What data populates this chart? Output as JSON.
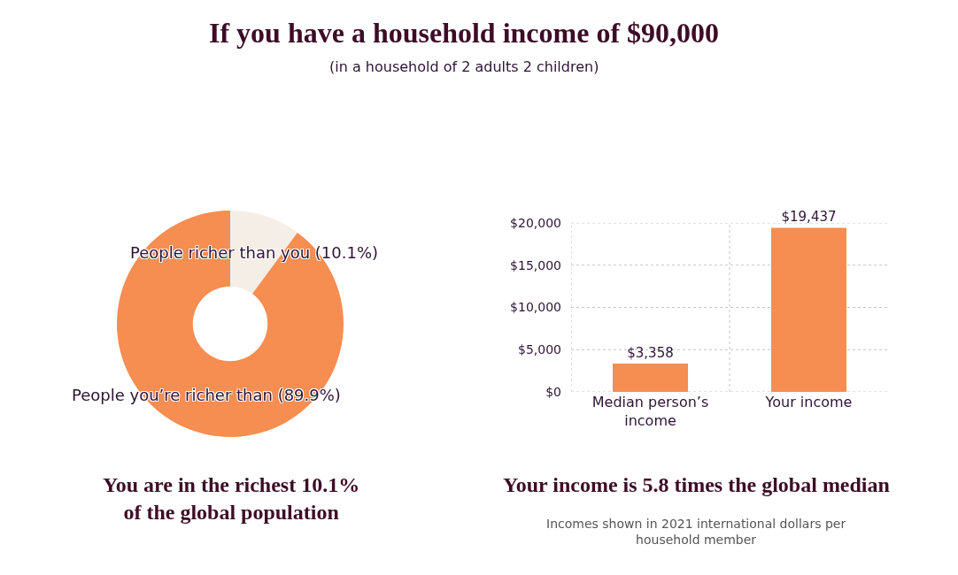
{
  "chart_data": [
    {
      "type": "other",
      "title": "If you have a household income of $90,000",
      "subtitle": "(in a household of 2 adults 2 children)"
    },
    {
      "type": "donut",
      "categories": [
        "People richer than you (10.1%)",
        "People you’re richer than (89.9%)"
      ],
      "values": [
        10.1,
        89.9
      ],
      "colors": [
        "#f4eee6",
        "#f68d51"
      ],
      "annotations": [
        "You are in the richest 10.1% of the global population"
      ]
    },
    {
      "type": "bar",
      "categories": [
        "Median person’s income",
        "Your income"
      ],
      "values": [
        3358,
        19437
      ],
      "color": "#f68d51",
      "value_labels": [
        "$3,358",
        "$19,437"
      ],
      "ylim": [
        0,
        20000
      ],
      "yticks": [
        {
          "value": 0,
          "label": "$0"
        },
        {
          "value": 5000,
          "label": "$5,000"
        },
        {
          "value": 10000,
          "label": "$10,000"
        },
        {
          "value": 15000,
          "label": "$15,000"
        },
        {
          "value": 20000,
          "label": "$20,000"
        }
      ],
      "grid": true,
      "annotations": [
        "Your income is 5.8 times the global median",
        "Incomes shown in 2021 international dollars per household member"
      ]
    }
  ]
}
